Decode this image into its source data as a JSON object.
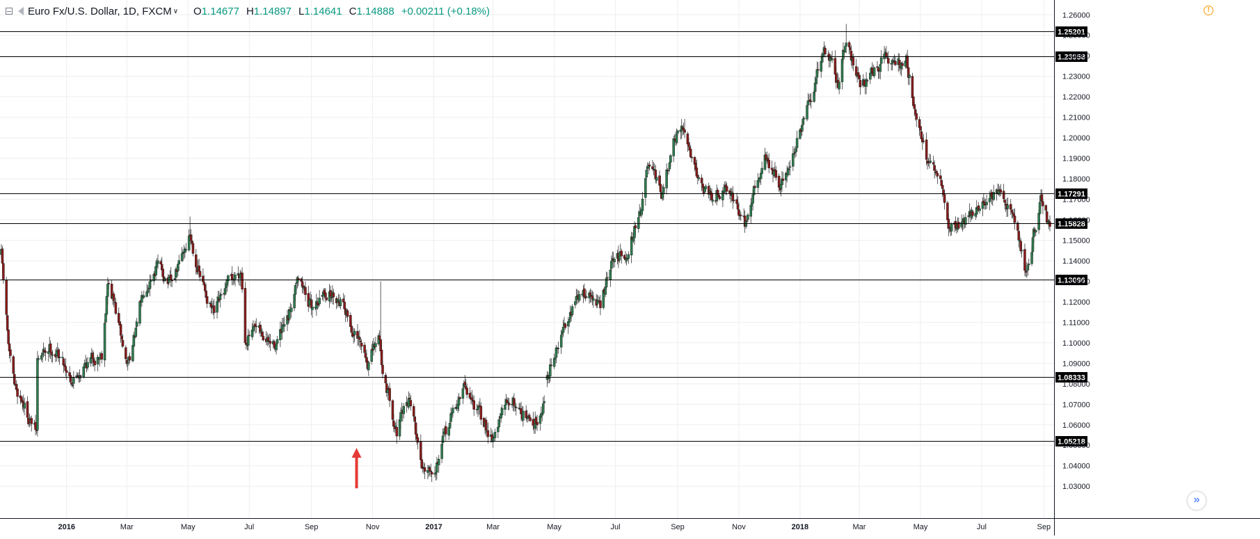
{
  "header": {
    "symbol": "Euro Fx/U.S. Dollar, 1D, FXCM",
    "open_label": "O",
    "open": "1.14677",
    "high_label": "H",
    "high": "1.14897",
    "low_label": "L",
    "low": "1.14641",
    "close_label": "C",
    "close": "1.14888",
    "change": "+0.00211 (+0.18%)"
  },
  "colors": {
    "up": "#2e7d4f",
    "down": "#8b1a1a",
    "grid": "#eeeeee",
    "level": "#000000",
    "arrow": "#e53935",
    "warning": "#ff9800"
  },
  "icons": {
    "collapse": "minus-square-icon",
    "flag": "flag-icon",
    "dropdown": "chevron-down-icon",
    "warning": "warning-icon",
    "scroll": "double-chevron-right-icon"
  },
  "chart_data": {
    "type": "candlestick",
    "interval": "1D",
    "x_range": [
      "2015-10-28",
      "2018-09-07"
    ],
    "ylim": [
      1.0243,
      1.2645
    ],
    "yticks": [
      "1.26000",
      "1.25000",
      "1.24000",
      "1.23000",
      "1.22000",
      "1.21000",
      "1.20000",
      "1.19000",
      "1.18000",
      "1.17000",
      "1.16000",
      "1.15000",
      "1.14000",
      "1.13000",
      "1.12000",
      "1.11000",
      "1.10000",
      "1.09000",
      "1.08000",
      "1.07000",
      "1.06000",
      "1.05000",
      "1.04000",
      "1.03000"
    ],
    "xticks": [
      {
        "label": "2016",
        "date": "2016-01-01",
        "bold": true
      },
      {
        "label": "Mar",
        "date": "2016-03-01"
      },
      {
        "label": "May",
        "date": "2016-05-01"
      },
      {
        "label": "Jul",
        "date": "2016-07-01"
      },
      {
        "label": "Sep",
        "date": "2016-09-01"
      },
      {
        "label": "Nov",
        "date": "2016-11-01"
      },
      {
        "label": "2017",
        "date": "2017-01-01",
        "bold": true
      },
      {
        "label": "Mar",
        "date": "2017-03-01"
      },
      {
        "label": "May",
        "date": "2017-05-01"
      },
      {
        "label": "Jul",
        "date": "2017-07-01"
      },
      {
        "label": "Sep",
        "date": "2017-09-01"
      },
      {
        "label": "Nov",
        "date": "2017-11-01"
      },
      {
        "label": "2018",
        "date": "2018-01-01",
        "bold": true
      },
      {
        "label": "Mar",
        "date": "2018-03-01"
      },
      {
        "label": "May",
        "date": "2018-05-01"
      },
      {
        "label": "Jul",
        "date": "2018-07-01"
      },
      {
        "label": "Sep",
        "date": "2018-09-01"
      }
    ],
    "levels": [
      {
        "label": "1.25201",
        "value": 1.25201
      },
      {
        "label": "1.23958",
        "value": 1.23958
      },
      {
        "label": "1.17291",
        "value": 1.17291
      },
      {
        "label": "1.15828",
        "value": 1.15828
      },
      {
        "label": "1.13096",
        "value": 1.13096
      },
      {
        "label": "1.08333",
        "value": 1.08333
      },
      {
        "label": "1.05218",
        "value": 1.05218
      }
    ],
    "annotation": {
      "type": "arrow-up",
      "date": "2016-10-16",
      "from": 1.029,
      "to": 1.048
    },
    "price_path": [
      [
        "2015-10-28",
        1.143
      ],
      [
        "2015-11-05",
        1.093
      ],
      [
        "2015-11-10",
        1.078
      ],
      [
        "2015-11-18",
        1.072
      ],
      [
        "2015-11-24",
        1.064
      ],
      [
        "2015-12-02",
        1.056
      ],
      [
        "2015-12-03",
        1.091
      ],
      [
        "2015-12-15",
        1.098
      ],
      [
        "2015-12-25",
        1.094
      ],
      [
        "2016-01-07",
        1.082
      ],
      [
        "2016-01-20",
        1.09
      ],
      [
        "2016-02-05",
        1.095
      ],
      [
        "2016-02-11",
        1.129
      ],
      [
        "2016-02-17",
        1.12
      ],
      [
        "2016-03-01",
        1.089
      ],
      [
        "2016-03-10",
        1.105
      ],
      [
        "2016-03-18",
        1.127
      ],
      [
        "2016-03-31",
        1.138
      ],
      [
        "2016-04-15",
        1.128
      ],
      [
        "2016-05-03",
        1.153
      ],
      [
        "2016-05-13",
        1.132
      ],
      [
        "2016-05-27",
        1.113
      ],
      [
        "2016-06-10",
        1.128
      ],
      [
        "2016-06-23",
        1.136
      ],
      [
        "2016-06-27",
        1.103
      ],
      [
        "2016-07-08",
        1.105
      ],
      [
        "2016-07-25",
        1.098
      ],
      [
        "2016-08-09",
        1.11
      ],
      [
        "2016-08-18",
        1.135
      ],
      [
        "2016-09-01",
        1.117
      ],
      [
        "2016-09-15",
        1.125
      ],
      [
        "2016-10-03",
        1.121
      ],
      [
        "2016-10-11",
        1.107
      ],
      [
        "2016-10-27",
        1.09
      ],
      [
        "2016-11-08",
        1.103
      ],
      [
        "2016-11-10",
        1.09
      ],
      [
        "2016-11-25",
        1.057
      ],
      [
        "2016-12-08",
        1.074
      ],
      [
        "2016-12-20",
        1.04
      ],
      [
        "2017-01-03",
        1.041
      ],
      [
        "2017-01-20",
        1.066
      ],
      [
        "2017-02-01",
        1.079
      ],
      [
        "2017-02-20",
        1.06
      ],
      [
        "2017-03-01",
        1.055
      ],
      [
        "2017-03-17",
        1.073
      ],
      [
        "2017-03-31",
        1.066
      ],
      [
        "2017-04-10",
        1.059
      ],
      [
        "2017-04-21",
        1.072
      ],
      [
        "2017-04-24",
        1.085
      ],
      [
        "2017-05-05",
        1.098
      ],
      [
        "2017-05-17",
        1.117
      ],
      [
        "2017-06-01",
        1.125
      ],
      [
        "2017-06-16",
        1.118
      ],
      [
        "2017-06-27",
        1.138
      ],
      [
        "2017-07-14",
        1.146
      ],
      [
        "2017-07-27",
        1.167
      ],
      [
        "2017-08-02",
        1.185
      ],
      [
        "2017-08-17",
        1.172
      ],
      [
        "2017-08-29",
        1.198
      ],
      [
        "2017-09-08",
        1.203
      ],
      [
        "2017-09-26",
        1.176
      ],
      [
        "2017-10-06",
        1.173
      ],
      [
        "2017-10-20",
        1.177
      ],
      [
        "2017-11-07",
        1.158
      ],
      [
        "2017-11-27",
        1.192
      ],
      [
        "2017-12-12",
        1.175
      ],
      [
        "2018-01-04",
        1.206
      ],
      [
        "2018-01-12",
        1.218
      ],
      [
        "2018-01-25",
        1.245
      ],
      [
        "2018-02-09",
        1.226
      ],
      [
        "2018-02-16",
        1.25
      ],
      [
        "2018-03-01",
        1.225
      ],
      [
        "2018-03-22",
        1.237
      ],
      [
        "2018-04-17",
        1.237
      ],
      [
        "2018-04-26",
        1.214
      ],
      [
        "2018-05-09",
        1.187
      ],
      [
        "2018-05-22",
        1.176
      ],
      [
        "2018-05-29",
        1.156
      ],
      [
        "2018-06-14",
        1.16
      ],
      [
        "2018-06-27",
        1.165
      ],
      [
        "2018-07-09",
        1.172
      ],
      [
        "2018-07-25",
        1.17
      ],
      [
        "2018-08-02",
        1.163
      ],
      [
        "2018-08-14",
        1.135
      ],
      [
        "2018-08-29",
        1.169
      ],
      [
        "2018-09-07",
        1.155
      ]
    ],
    "gap": {
      "from": "2017-04-21",
      "to": "2017-04-24"
    },
    "outliers": [
      [
        "2016-11-09",
        1.1299
      ],
      [
        "2016-05-03",
        1.1616
      ],
      [
        "2017-09-08",
        1.2092
      ],
      [
        "2018-02-16",
        1.2556
      ]
    ]
  }
}
